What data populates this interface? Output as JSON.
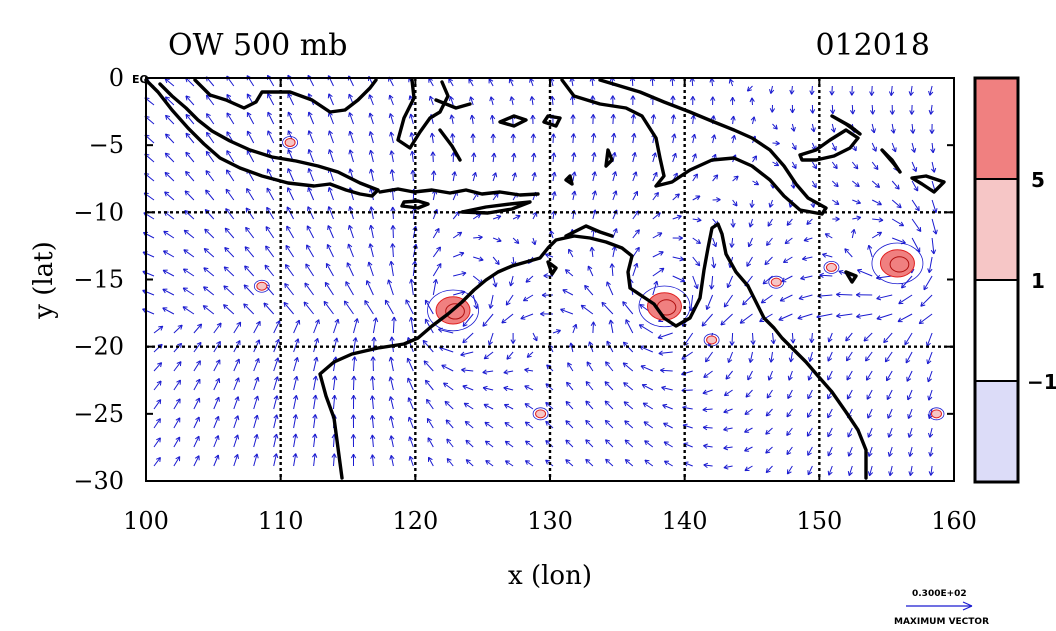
{
  "title_left": "OW 500 mb",
  "title_right": "012018",
  "x_axis_label": "x (lon)",
  "y_axis_label": "y (lat)",
  "equator_label": "EQ",
  "x_ticks": [
    "100",
    "110",
    "120",
    "130",
    "140",
    "150",
    "160"
  ],
  "y_ticks": [
    "0",
    "−5",
    "−10",
    "−15",
    "−20",
    "−25",
    "−30"
  ],
  "colorbar": {
    "labels": [
      "5",
      "1",
      "−1"
    ],
    "levels": [
      {
        "from": 5,
        "color": "#f08080"
      },
      {
        "from": 1,
        "to": 5,
        "color": "#f6c6c6"
      },
      {
        "from": -1,
        "to": 1,
        "color": "#ffffff"
      },
      {
        "to": -1,
        "color": "#dcdcf8"
      }
    ]
  },
  "reference_vector": {
    "value_label": "0.300E+02",
    "caption": "MAXIMUM VECTOR"
  },
  "colors": {
    "vectors": "#1a1ad0",
    "positive_contour": "#e02020",
    "positive_fill": "#f08080",
    "coastline": "#000000",
    "grid": "#000000"
  },
  "chart_data": {
    "type": "vector-contour-map",
    "title": "OW 500 mb",
    "date": "012018",
    "xlabel": "x (lon)",
    "ylabel": "y (lat)",
    "xlim": [
      100,
      160
    ],
    "ylim": [
      -30,
      0
    ],
    "grid": true,
    "grid_lon": [
      110,
      120,
      130,
      140,
      150
    ],
    "grid_lat": [
      -10,
      -20
    ],
    "contour_levels": [
      -1,
      1,
      5
    ],
    "high_ow_regions": [
      {
        "lon": 122.8,
        "lat": -17.3,
        "level": ">5"
      },
      {
        "lon": 138.5,
        "lat": -17.0,
        "level": ">5"
      },
      {
        "lon": 155.8,
        "lat": -13.8,
        "level": ">5"
      },
      {
        "lon": 110.7,
        "lat": -4.8,
        "level": ">1"
      },
      {
        "lon": 108.6,
        "lat": -15.5,
        "level": ">1"
      },
      {
        "lon": 158.7,
        "lat": -25.0,
        "level": ">1"
      },
      {
        "lon": 129.3,
        "lat": -25.0,
        "level": ">1"
      },
      {
        "lon": 146.8,
        "lat": -15.2,
        "level": ">1"
      },
      {
        "lon": 142.0,
        "lat": -19.5,
        "level": ">1"
      },
      {
        "lon": 150.9,
        "lat": -14.1,
        "level": ">1"
      }
    ],
    "reference_vector": "0.300E+02"
  }
}
